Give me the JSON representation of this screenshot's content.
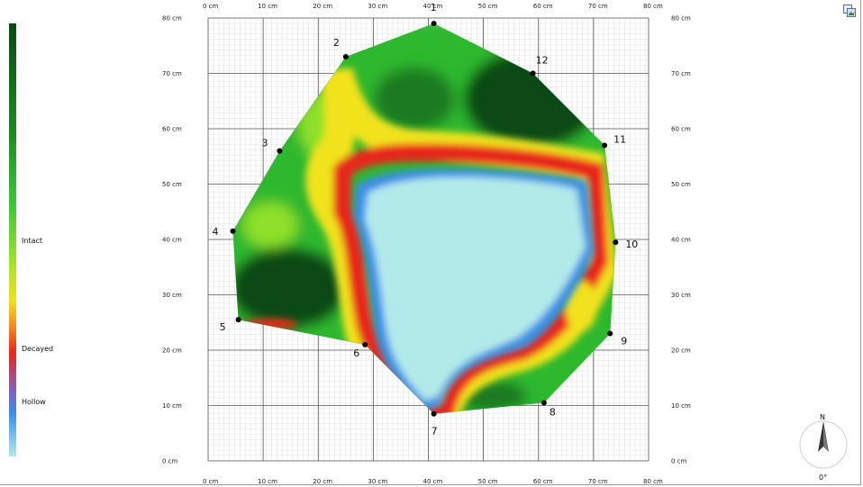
{
  "colors": {
    "intact_dark": "#0b4a14",
    "intact": "#2db82d",
    "intact_light": "#8ee02a",
    "transition": "#f1e21c",
    "decayed": "#e8281d",
    "hollow": "#3a8ee6",
    "hollow_light": "#b2eaea"
  },
  "legend": {
    "labels": [
      "Intact",
      "Decayed",
      "Hollow"
    ]
  },
  "chart_data": {
    "type": "heatmap",
    "title": "",
    "xlabel": "",
    "ylabel": "",
    "xlim": [
      0,
      80
    ],
    "ylim": [
      0,
      80
    ],
    "unit": "cm",
    "grid": true,
    "legend_placement": "left",
    "x_ticks": [
      "0 cm",
      "10 cm",
      "20 cm",
      "30 cm",
      "40 cm",
      "50 cm",
      "60 cm",
      "70 cm",
      "80 cm"
    ],
    "y_ticks": [
      "0 cm",
      "10 cm",
      "20 cm",
      "30 cm",
      "40 cm",
      "50 cm",
      "60 cm",
      "70 cm",
      "80 cm"
    ],
    "measurement_points": [
      {
        "label": "1",
        "x": 41,
        "y": 79
      },
      {
        "label": "2",
        "x": 25,
        "y": 73
      },
      {
        "label": "3",
        "x": 13,
        "y": 56
      },
      {
        "label": "4",
        "x": 4.5,
        "y": 41.5
      },
      {
        "label": "5",
        "x": 5.5,
        "y": 25.5
      },
      {
        "label": "6",
        "x": 28.5,
        "y": 21
      },
      {
        "label": "7",
        "x": 41,
        "y": 8.5
      },
      {
        "label": "8",
        "x": 61,
        "y": 10.5
      },
      {
        "label": "9",
        "x": 73,
        "y": 23
      },
      {
        "label": "10",
        "x": 74,
        "y": 39.5
      },
      {
        "label": "11",
        "x": 72,
        "y": 57
      },
      {
        "label": "12",
        "x": 59,
        "y": 70
      }
    ]
  },
  "compass": {
    "north_label": "N",
    "angle_label": "0°"
  }
}
